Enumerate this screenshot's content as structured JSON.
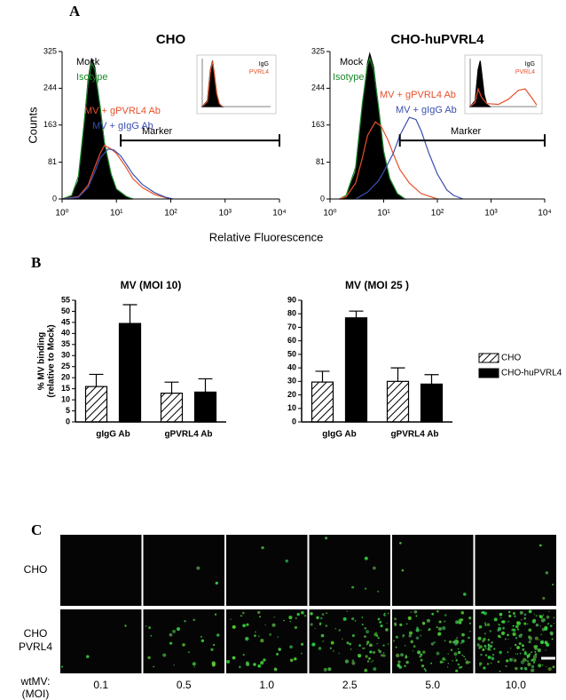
{
  "panel_labels": [
    "A",
    "B",
    "C"
  ],
  "chart_data": [
    {
      "type": "line",
      "title": "CHO",
      "ylabel": "Counts",
      "xlabel": "Relative Fluorescence",
      "xscale": "log",
      "xlim": [
        1,
        10000
      ],
      "xticks": [
        {
          "value": 1,
          "label": "10⁰"
        },
        {
          "value": 10,
          "label": "10¹"
        },
        {
          "value": 100,
          "label": "10²"
        },
        {
          "value": 1000,
          "label": "10³"
        },
        {
          "value": 10000,
          "label": "10⁴"
        }
      ],
      "ylim": [
        0,
        325
      ],
      "yticks": [
        0,
        81,
        163,
        244,
        325
      ],
      "series": [
        {
          "name": "Mock",
          "color": "#000000",
          "fill": true,
          "x": [
            1,
            1.5,
            2,
            2.5,
            3,
            3.5,
            4,
            5,
            6,
            8,
            10,
            15,
            20
          ],
          "values": [
            0,
            5,
            40,
            150,
            260,
            310,
            290,
            200,
            120,
            50,
            20,
            5,
            0
          ]
        },
        {
          "name": "Isotype",
          "color": "#1a8a2a",
          "x": [
            1,
            1.5,
            2,
            2.5,
            3,
            3.5,
            4,
            5,
            6,
            8,
            10,
            15,
            20
          ],
          "values": [
            0,
            8,
            50,
            160,
            255,
            300,
            285,
            205,
            125,
            55,
            22,
            6,
            0
          ]
        },
        {
          "name": "MV + gPVRL4 Ab",
          "color": "#e8502a",
          "x": [
            1,
            2,
            3,
            4,
            5,
            6,
            8,
            10,
            15,
            20,
            30,
            50,
            80,
            100
          ],
          "values": [
            0,
            5,
            30,
            70,
            100,
            118,
            110,
            100,
            70,
            45,
            25,
            10,
            3,
            0
          ]
        },
        {
          "name": "MV + gIgG Ab",
          "color": "#3a4fb0",
          "x": [
            1,
            2,
            3,
            4,
            5,
            7,
            9,
            12,
            15,
            20,
            30,
            50,
            80,
            110
          ],
          "values": [
            0,
            4,
            25,
            60,
            90,
            110,
            108,
            95,
            78,
            55,
            32,
            14,
            4,
            0
          ]
        }
      ],
      "marker": {
        "label": "Marker",
        "x": [
          12,
          10000
        ],
        "y": 129
      },
      "inset": {
        "series": [
          {
            "name": "IgG",
            "color": "#000000",
            "fill": true,
            "x": [
              1,
              2,
              3,
              4,
              5,
              7,
              10,
              15
            ],
            "values": [
              0,
              40,
              250,
              310,
              220,
              80,
              15,
              0
            ]
          },
          {
            "name": "PVRL4",
            "color": "#e8502a",
            "x": [
              1,
              2,
              3,
              4,
              5,
              7,
              10,
              15
            ],
            "values": [
              0,
              35,
              240,
              305,
              230,
              90,
              20,
              0
            ]
          }
        ]
      }
    },
    {
      "type": "line",
      "title": "CHO-huPVRL4",
      "xscale": "log",
      "xlim": [
        1,
        10000
      ],
      "xticks": [
        {
          "value": 1,
          "label": "10⁰"
        },
        {
          "value": 10,
          "label": "10¹"
        },
        {
          "value": 100,
          "label": "10²"
        },
        {
          "value": 1000,
          "label": "10³"
        },
        {
          "value": 10000,
          "label": "10⁴"
        }
      ],
      "ylim": [
        0,
        325
      ],
      "yticks": [
        0,
        81,
        163,
        244,
        325
      ],
      "series": [
        {
          "name": "Mock",
          "color": "#000000",
          "fill": true,
          "x": [
            1.5,
            2,
            3,
            4,
            5,
            5.5,
            6.5,
            8,
            10,
            13,
            18,
            25
          ],
          "values": [
            0,
            5,
            60,
            200,
            300,
            320,
            290,
            200,
            100,
            40,
            10,
            0
          ]
        },
        {
          "name": "Isotype",
          "color": "#1a8a2a",
          "x": [
            1.5,
            2,
            3,
            4,
            5,
            5.5,
            6.5,
            8,
            10,
            13,
            18,
            25
          ],
          "values": [
            0,
            8,
            70,
            210,
            295,
            310,
            285,
            205,
            105,
            45,
            12,
            0
          ]
        },
        {
          "name": "MV + gPVRL4 Ab",
          "color": "#e8502a",
          "x": [
            1.5,
            2,
            3,
            4,
            5,
            7,
            9,
            12,
            15,
            20,
            30,
            50,
            100
          ],
          "values": [
            0,
            5,
            35,
            90,
            140,
            170,
            160,
            130,
            100,
            65,
            35,
            12,
            0
          ]
        },
        {
          "name": "MV + gIgG Ab",
          "color": "#3a4fb0",
          "x": [
            3,
            5,
            8,
            10,
            15,
            20,
            30,
            40,
            50,
            70,
            100,
            150,
            200,
            300
          ],
          "values": [
            0,
            15,
            40,
            60,
            100,
            140,
            180,
            175,
            150,
            100,
            55,
            20,
            8,
            0
          ]
        }
      ],
      "marker": {
        "label": "Marker",
        "x": [
          20,
          10000
        ],
        "y": 129
      },
      "inset": {
        "series": [
          {
            "name": "IgG",
            "color": "#000000",
            "fill": true,
            "x": [
              1,
              2,
              3,
              4,
              5,
              7,
              10,
              15
            ],
            "values": [
              0,
              40,
              250,
              310,
              220,
              80,
              15,
              0
            ]
          },
          {
            "name": "PVRL4",
            "color": "#e8502a",
            "x": [
              1,
              2,
              3,
              5,
              10,
              50,
              200,
              800,
              2000,
              5000,
              10000
            ],
            "values": [
              0,
              30,
              120,
              60,
              20,
              15,
              50,
              110,
              120,
              60,
              10
            ]
          }
        ]
      }
    },
    {
      "type": "bar",
      "title": "MV (MOI 10)",
      "ylabel": [
        "% MV binding",
        "(relative to Mock)"
      ],
      "categories": [
        "gIgG Ab",
        "gPVRL4 Ab"
      ],
      "ylim": [
        0,
        55
      ],
      "yticks": [
        0,
        5,
        10,
        15,
        20,
        25,
        30,
        35,
        40,
        45,
        50,
        55
      ],
      "series": [
        {
          "pattern": "hatch",
          "color": "#000000",
          "values": [
            16,
            13
          ],
          "errors": [
            5.5,
            5
          ]
        },
        {
          "pattern": "solid",
          "color": "#000000",
          "values": [
            44.5,
            13.5
          ],
          "errors": [
            8.5,
            6
          ]
        }
      ]
    },
    {
      "type": "bar",
      "title": "MV (MOI 25 )",
      "legend": "right",
      "categories": [
        "gIgG Ab",
        "gPVRL4 Ab"
      ],
      "ylim": [
        0,
        90
      ],
      "yticks": [
        0,
        10,
        20,
        30,
        40,
        50,
        60,
        70,
        80,
        90
      ],
      "series": [
        {
          "name": "CHO",
          "pattern": "hatch",
          "color": "#000000",
          "values": [
            29.5,
            30
          ],
          "errors": [
            8,
            10
          ]
        },
        {
          "name": "CHO-huPVRL4",
          "pattern": "solid",
          "color": "#000000",
          "values": [
            77,
            28
          ],
          "errors": [
            5,
            7
          ]
        }
      ]
    }
  ],
  "panel_c": {
    "rows": [
      [
        "CHO"
      ],
      [
        "CHO",
        "PVRL4"
      ]
    ],
    "x_label": [
      "wtMV:",
      "(MOI)"
    ],
    "moi": [
      "0.1",
      "0.5",
      "1.0",
      "2.5",
      "5.0",
      "10.0"
    ]
  }
}
